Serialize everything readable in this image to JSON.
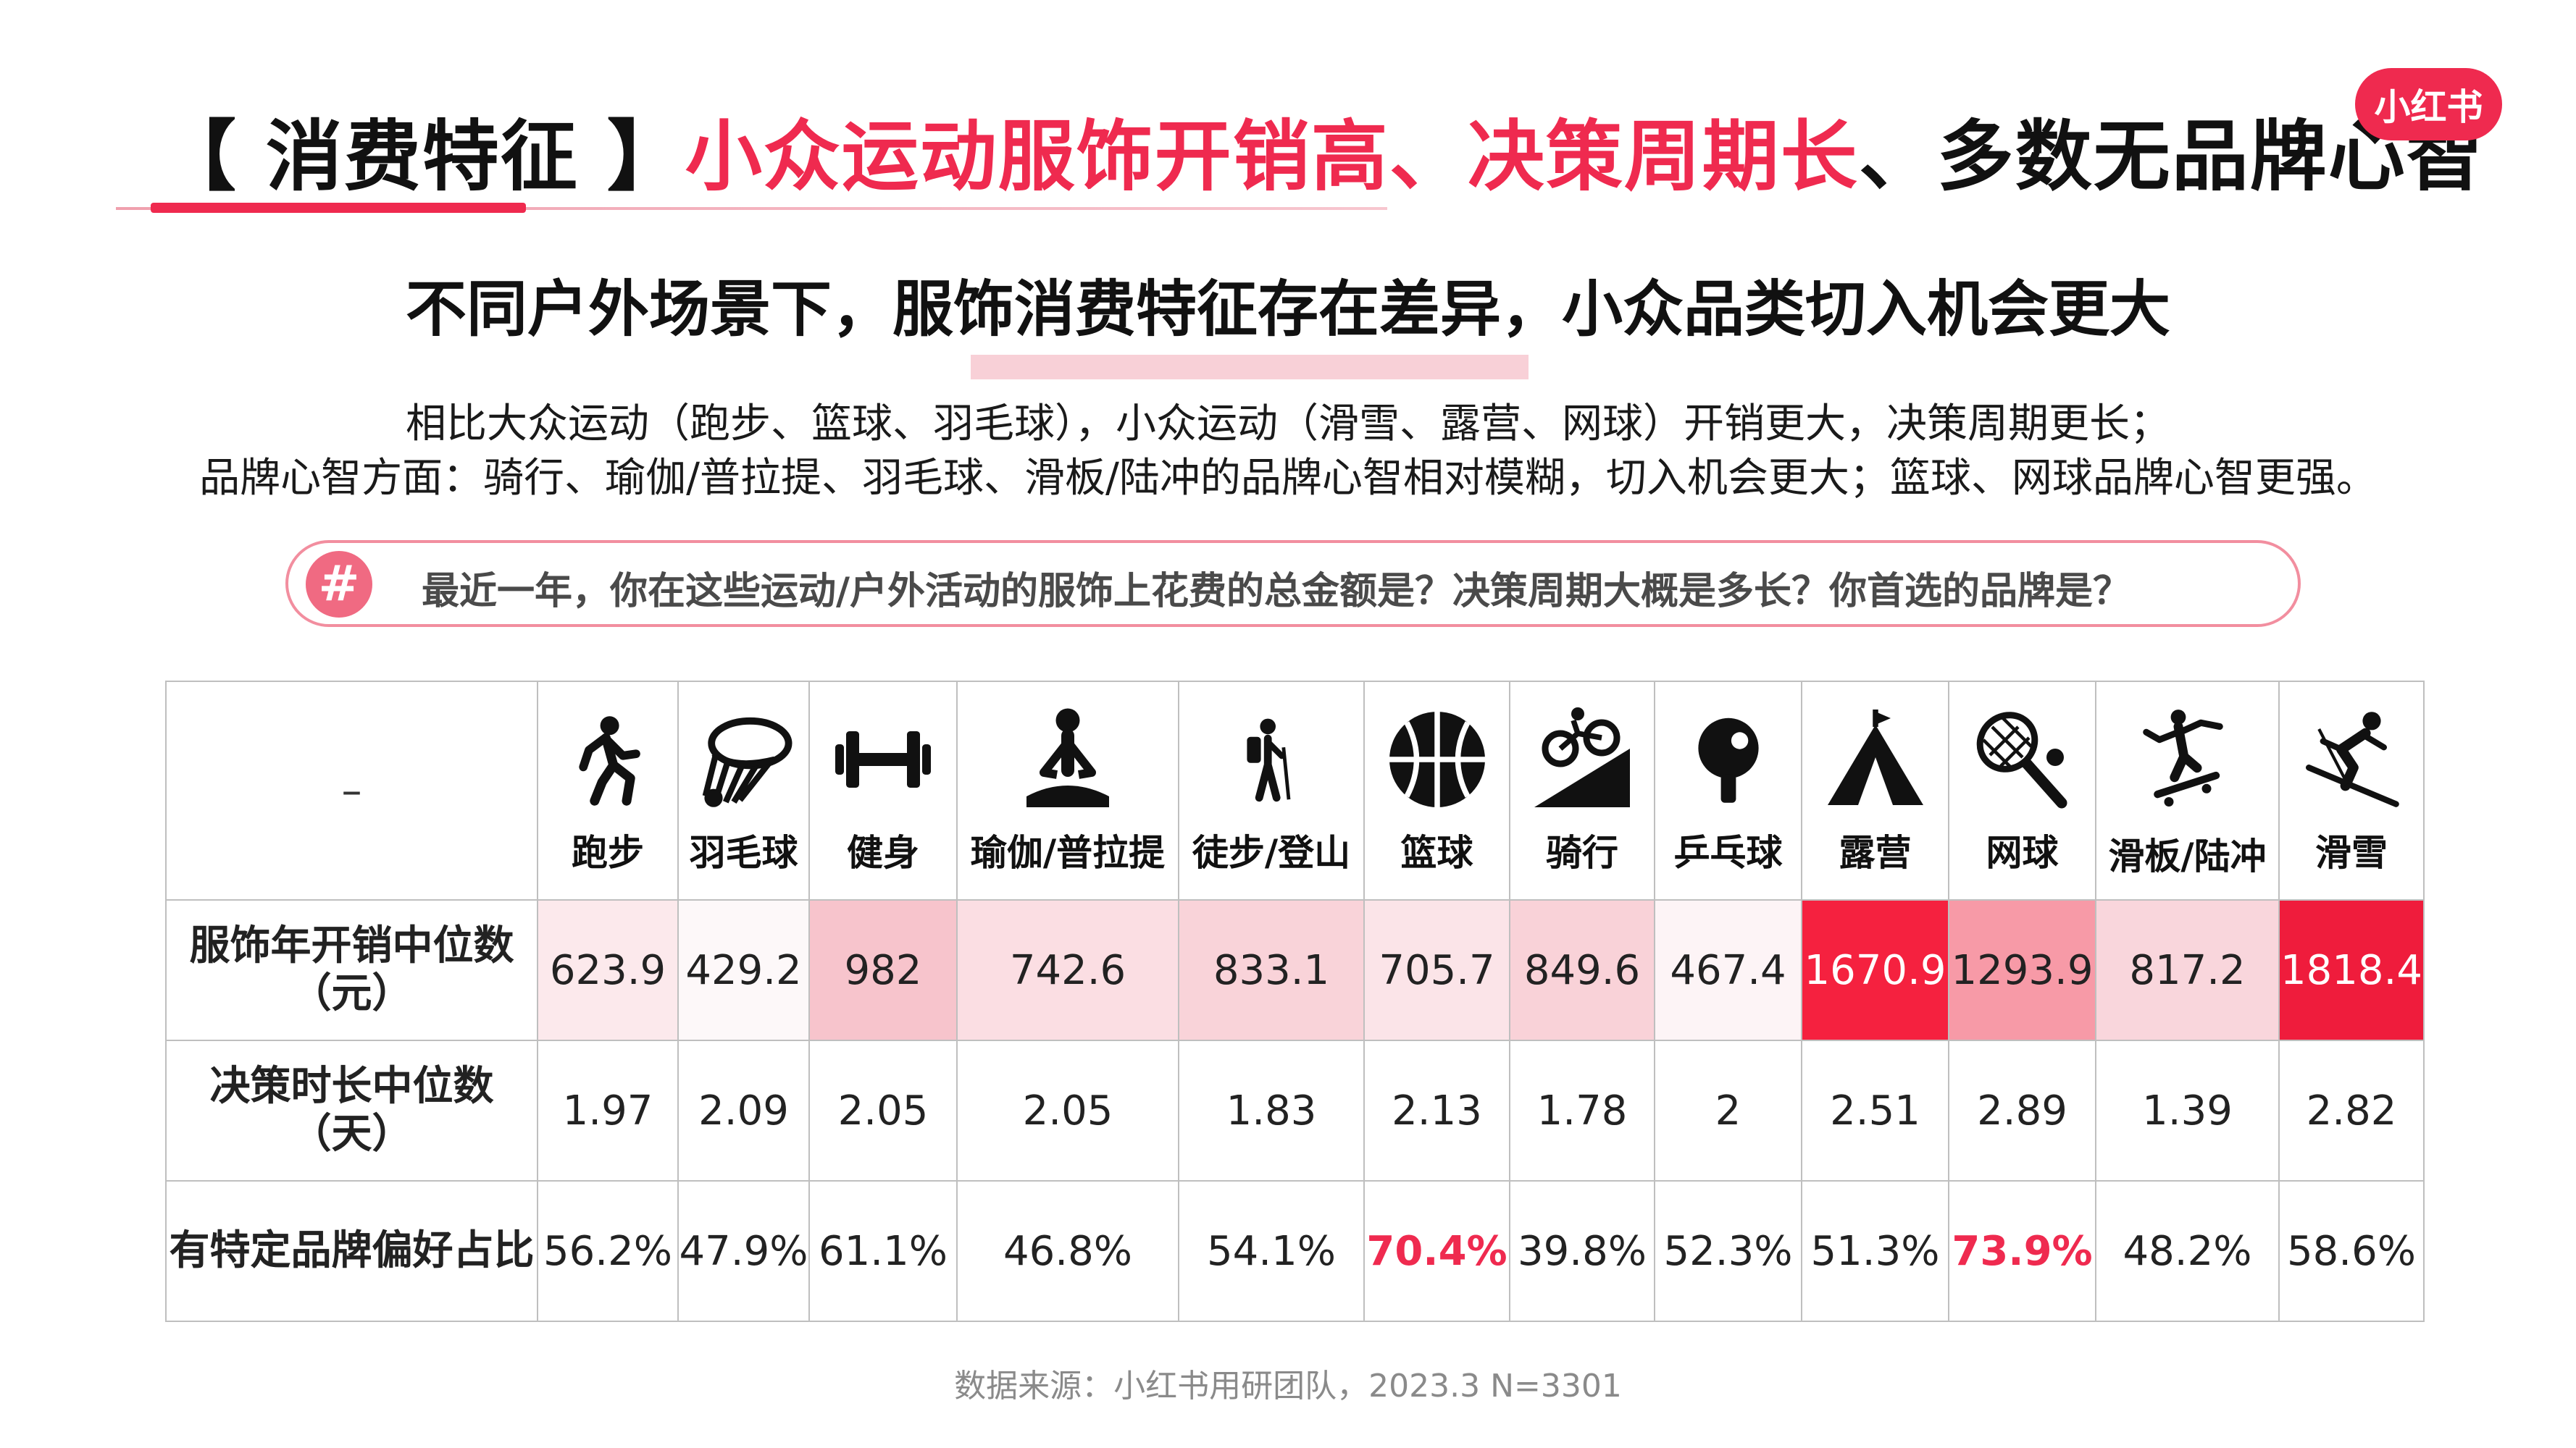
{
  "title": {
    "bracket": "【 消费特征 】",
    "highlight": "小众运动服饰开销高、决策周期长",
    "rest": "、多数无品牌心智"
  },
  "logo": "小红书",
  "subtitle": "不同户外场景下，服饰消费特征存在差异，小众品类切入机会更大",
  "description": [
    "相比大众运动（跑步、篮球、羽毛球），小众运动（滑雪、露营、网球）开销更大，决策周期更长；",
    "品牌心智方面：骑行、瑜伽/普拉提、羽毛球、滑板/陆冲的品牌心智相对模糊，切入机会更大；篮球、网球品牌心智更强。"
  ],
  "question": {
    "icon": "#",
    "text": "最近一年，你在这些运动/户外活动的服饰上花费的总金额是？决策周期大概是多长？你首选的品牌是？"
  },
  "table": {
    "corner": "–",
    "categories": [
      {
        "label": "跑步",
        "icon": "running-icon"
      },
      {
        "label": "羽毛球",
        "icon": "shuttlecock-icon"
      },
      {
        "label": "健身",
        "icon": "dumbbell-icon"
      },
      {
        "label": "瑜伽/普拉提",
        "icon": "yoga-icon"
      },
      {
        "label": "徒步/登山",
        "icon": "hiking-icon"
      },
      {
        "label": "篮球",
        "icon": "basketball-icon"
      },
      {
        "label": "骑行",
        "icon": "cycling-icon"
      },
      {
        "label": "乒乓球",
        "icon": "ping-pong-icon"
      },
      {
        "label": "露营",
        "icon": "tent-icon"
      },
      {
        "label": "网球",
        "icon": "tennis-icon"
      },
      {
        "label": "滑板/陆冲",
        "icon": "skateboard-icon"
      },
      {
        "label": "滑雪",
        "icon": "skiing-icon"
      }
    ],
    "rows": [
      {
        "label_line1": "服饰年开销中位数",
        "label_line2": "（元）",
        "values": [
          "623.9",
          "429.2",
          "982",
          "742.6",
          "833.1",
          "705.7",
          "849.6",
          "467.4",
          "1670.9",
          "1293.9",
          "817.2",
          "1818.4"
        ],
        "bg_colors": [
          "#fce9ec",
          "#fdf8f9",
          "#f7c4cc",
          "#fbdee3",
          "#f9d3d9",
          "#fbe4e8",
          "#f9d2d8",
          "#fdf4f6",
          "#f5213f",
          "#f79aa7",
          "#f9d6dc",
          "#ef1c3c"
        ],
        "text_colors": [
          "#222",
          "#222",
          "#222",
          "#222",
          "#222",
          "#222",
          "#222",
          "#222",
          "#ffffff",
          "#222",
          "#222",
          "#ffffff"
        ]
      },
      {
        "label_line1": "决策时长中位数",
        "label_line2": "（天）",
        "values": [
          "1.97",
          "2.09",
          "2.05",
          "2.05",
          "1.83",
          "2.13",
          "1.78",
          "2",
          "2.51",
          "2.89",
          "1.39",
          "2.82"
        ]
      },
      {
        "label_line1": "有特定品牌偏好占比",
        "label_line2": "",
        "values": [
          "56.2%",
          "47.9%",
          "61.1%",
          "46.8%",
          "54.1%",
          "70.4%",
          "39.8%",
          "52.3%",
          "51.3%",
          "73.9%",
          "48.2%",
          "58.6%"
        ],
        "highlight_indices": [
          5,
          9
        ],
        "highlight_color": "#ef2a4f"
      }
    ]
  },
  "source": "数据来源：小红书用研团队，2023.3 N=3301"
}
